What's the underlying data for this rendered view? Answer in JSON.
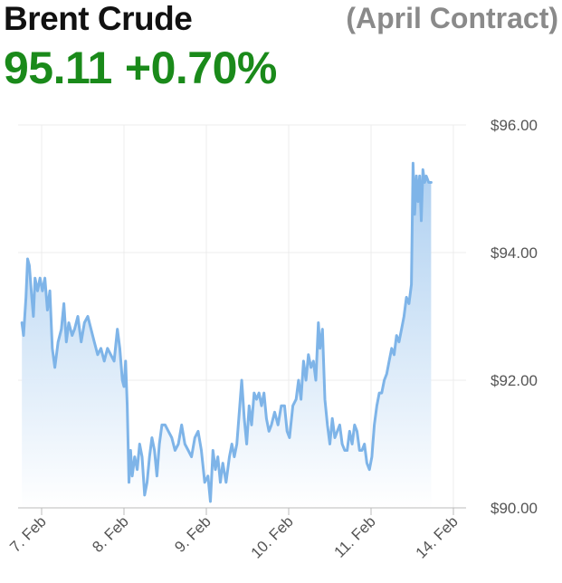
{
  "header": {
    "title": "Brent Crude",
    "contract": "(April Contract)",
    "price": "95.11",
    "change": "+0.70%"
  },
  "colors": {
    "line": "#7eb4e8",
    "fill_top": "#a9cdf0",
    "fill_bottom": "#ffffff",
    "change_positive": "#1a8a1a",
    "grid": "#ececec"
  },
  "chart_data": {
    "type": "area",
    "title": "",
    "xlabel": "",
    "ylabel": "",
    "ylim": [
      90,
      96
    ],
    "yticks": [
      90,
      92,
      94,
      96
    ],
    "ytick_labels": [
      "$90.00",
      "$92.00",
      "$94.00",
      "$96.00"
    ],
    "xticks": [
      0,
      1,
      2,
      3,
      4,
      5
    ],
    "xtick_labels": [
      "7. Feb",
      "8. Feb",
      "9. Feb",
      "10. Feb",
      "11. Feb",
      "14. Feb"
    ],
    "grid": true,
    "series": [
      {
        "values": [
          [
            -0.24,
            92.9
          ],
          [
            -0.22,
            92.7
          ],
          [
            -0.19,
            93.3
          ],
          [
            -0.17,
            93.9
          ],
          [
            -0.15,
            93.8
          ],
          [
            -0.12,
            93.3
          ],
          [
            -0.1,
            93.0
          ],
          [
            -0.08,
            93.6
          ],
          [
            -0.05,
            93.4
          ],
          [
            -0.02,
            93.6
          ],
          [
            0.01,
            93.4
          ],
          [
            0.04,
            93.6
          ],
          [
            0.07,
            93.1
          ],
          [
            0.1,
            93.4
          ],
          [
            0.13,
            92.5
          ],
          [
            0.16,
            92.2
          ],
          [
            0.2,
            92.6
          ],
          [
            0.24,
            92.8
          ],
          [
            0.27,
            93.2
          ],
          [
            0.3,
            92.6
          ],
          [
            0.33,
            92.9
          ],
          [
            0.37,
            92.7
          ],
          [
            0.4,
            92.8
          ],
          [
            0.44,
            93.0
          ],
          [
            0.48,
            92.6
          ],
          [
            0.52,
            92.9
          ],
          [
            0.56,
            93.0
          ],
          [
            0.6,
            92.8
          ],
          [
            0.64,
            92.6
          ],
          [
            0.68,
            92.4
          ],
          [
            0.72,
            92.5
          ],
          [
            0.76,
            92.3
          ],
          [
            0.8,
            92.5
          ],
          [
            0.84,
            92.4
          ],
          [
            0.88,
            92.3
          ],
          [
            0.92,
            92.8
          ],
          [
            0.95,
            92.5
          ],
          [
            0.98,
            92.0
          ],
          [
            1.0,
            91.9
          ],
          [
            1.02,
            92.3
          ],
          [
            1.04,
            91.6
          ],
          [
            1.06,
            90.4
          ],
          [
            1.08,
            90.9
          ],
          [
            1.1,
            90.5
          ],
          [
            1.13,
            90.8
          ],
          [
            1.16,
            90.6
          ],
          [
            1.19,
            91.0
          ],
          [
            1.22,
            90.8
          ],
          [
            1.25,
            90.2
          ],
          [
            1.28,
            90.4
          ],
          [
            1.31,
            90.8
          ],
          [
            1.34,
            91.1
          ],
          [
            1.37,
            90.9
          ],
          [
            1.4,
            90.5
          ],
          [
            1.43,
            91.0
          ],
          [
            1.46,
            91.3
          ],
          [
            1.5,
            91.3
          ],
          [
            1.54,
            91.2
          ],
          [
            1.58,
            91.1
          ],
          [
            1.62,
            90.9
          ],
          [
            1.66,
            91.0
          ],
          [
            1.7,
            91.3
          ],
          [
            1.74,
            91.0
          ],
          [
            1.78,
            90.9
          ],
          [
            1.82,
            90.8
          ],
          [
            1.86,
            91.1
          ],
          [
            1.9,
            91.2
          ],
          [
            1.94,
            90.9
          ],
          [
            1.98,
            90.4
          ],
          [
            2.02,
            90.5
          ],
          [
            2.05,
            90.1
          ],
          [
            2.08,
            90.9
          ],
          [
            2.11,
            90.6
          ],
          [
            2.14,
            90.8
          ],
          [
            2.17,
            90.4
          ],
          [
            2.2,
            90.7
          ],
          [
            2.24,
            90.4
          ],
          [
            2.28,
            90.8
          ],
          [
            2.31,
            91.0
          ],
          [
            2.34,
            90.8
          ],
          [
            2.37,
            91.0
          ],
          [
            2.4,
            91.5
          ],
          [
            2.43,
            92.0
          ],
          [
            2.46,
            91.4
          ],
          [
            2.49,
            91.0
          ],
          [
            2.52,
            91.6
          ],
          [
            2.55,
            91.3
          ],
          [
            2.58,
            91.8
          ],
          [
            2.61,
            91.7
          ],
          [
            2.64,
            91.8
          ],
          [
            2.67,
            91.6
          ],
          [
            2.7,
            91.8
          ],
          [
            2.73,
            91.4
          ],
          [
            2.76,
            91.2
          ],
          [
            2.79,
            91.3
          ],
          [
            2.83,
            91.5
          ],
          [
            2.87,
            91.3
          ],
          [
            2.91,
            91.6
          ],
          [
            2.95,
            91.6
          ],
          [
            2.98,
            91.2
          ],
          [
            3.01,
            91.1
          ],
          [
            3.05,
            91.6
          ],
          [
            3.09,
            91.7
          ],
          [
            3.12,
            92.0
          ],
          [
            3.15,
            91.7
          ],
          [
            3.18,
            92.3
          ],
          [
            3.21,
            92.0
          ],
          [
            3.24,
            92.4
          ],
          [
            3.27,
            92.2
          ],
          [
            3.3,
            92.3
          ],
          [
            3.33,
            92.0
          ],
          [
            3.36,
            92.9
          ],
          [
            3.38,
            92.5
          ],
          [
            3.41,
            92.8
          ],
          [
            3.44,
            91.7
          ],
          [
            3.47,
            91.3
          ],
          [
            3.5,
            91.0
          ],
          [
            3.53,
            91.4
          ],
          [
            3.56,
            91.1
          ],
          [
            3.59,
            91.2
          ],
          [
            3.62,
            91.3
          ],
          [
            3.65,
            91.0
          ],
          [
            3.68,
            90.9
          ],
          [
            3.71,
            90.9
          ],
          [
            3.74,
            91.2
          ],
          [
            3.77,
            91.0
          ],
          [
            3.8,
            91.3
          ],
          [
            3.83,
            91.2
          ],
          [
            3.86,
            90.9
          ],
          [
            3.89,
            90.9
          ],
          [
            3.92,
            91.0
          ],
          [
            3.95,
            90.7
          ],
          [
            3.98,
            90.6
          ],
          [
            4.01,
            90.8
          ],
          [
            4.04,
            91.3
          ],
          [
            4.07,
            91.6
          ],
          [
            4.1,
            91.8
          ],
          [
            4.13,
            91.8
          ],
          [
            4.16,
            92.0
          ],
          [
            4.19,
            92.1
          ],
          [
            4.22,
            92.3
          ],
          [
            4.25,
            92.5
          ],
          [
            4.28,
            92.4
          ],
          [
            4.31,
            92.7
          ],
          [
            4.34,
            92.6
          ],
          [
            4.37,
            92.8
          ],
          [
            4.4,
            93.0
          ],
          [
            4.43,
            93.3
          ],
          [
            4.46,
            93.2
          ],
          [
            4.49,
            93.5
          ],
          [
            4.51,
            95.4
          ],
          [
            4.53,
            94.6
          ],
          [
            4.55,
            95.2
          ],
          [
            4.57,
            94.8
          ],
          [
            4.59,
            95.2
          ],
          [
            4.61,
            94.5
          ],
          [
            4.63,
            95.3
          ],
          [
            4.65,
            95.1
          ],
          [
            4.67,
            95.2
          ],
          [
            4.7,
            95.1
          ],
          [
            4.73,
            95.1
          ]
        ]
      }
    ]
  }
}
